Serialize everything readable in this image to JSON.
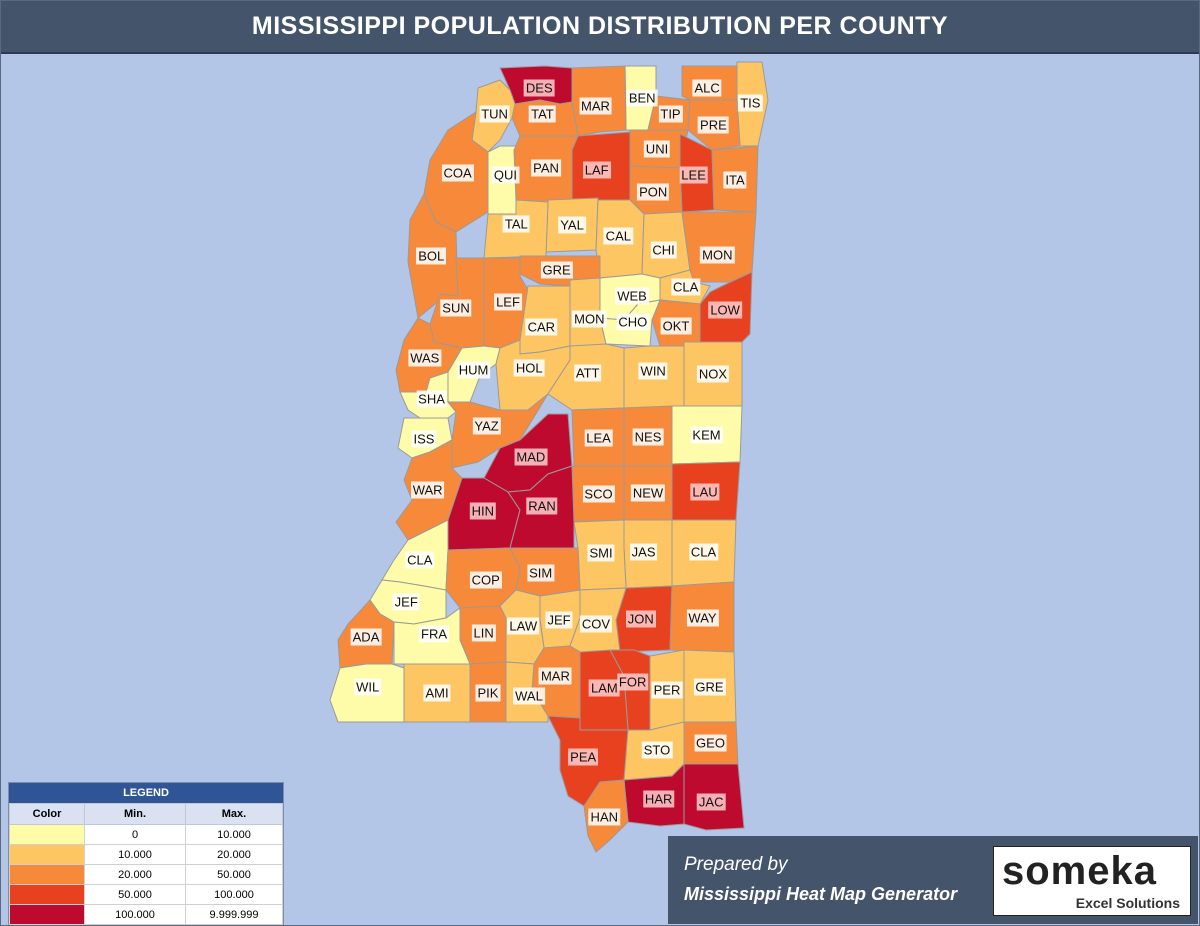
{
  "title": "MISSISSIPPI POPULATION DISTRIBUTION PER COUNTY",
  "colors": {
    "c1": "#fefca8",
    "c2": "#fdc662",
    "c3": "#f78a3a",
    "c4": "#e8411f",
    "c5": "#be0a2e",
    "sea": "#b4c6e7",
    "header": "#44546a"
  },
  "legend": {
    "title": "LEGEND",
    "col_color": "Color",
    "col_min": "Min.",
    "col_max": "Max.",
    "rows": [
      {
        "min": "0",
        "max": "10.000",
        "class": "c1"
      },
      {
        "min": "10.000",
        "max": "20.000",
        "class": "c2"
      },
      {
        "min": "20.000",
        "max": "50.000",
        "class": "c3"
      },
      {
        "min": "50.000",
        "max": "100.000",
        "class": "c4"
      },
      {
        "min": "100.000",
        "max": "9.999.999",
        "class": "c5"
      }
    ]
  },
  "counties": [
    {
      "code": "DES",
      "class": "c5"
    },
    {
      "code": "BEN",
      "class": "c1"
    },
    {
      "code": "ALC",
      "class": "c3"
    },
    {
      "code": "TIS",
      "class": "c2"
    },
    {
      "code": "MAR",
      "class": "c3"
    },
    {
      "code": "TIP",
      "class": "c3"
    },
    {
      "code": "TAT",
      "class": "c3"
    },
    {
      "code": "TUN",
      "class": "c2"
    },
    {
      "code": "PRE",
      "class": "c3"
    },
    {
      "code": "PAN",
      "class": "c3"
    },
    {
      "code": "UNI",
      "class": "c3"
    },
    {
      "code": "LAF",
      "class": "c4"
    },
    {
      "code": "LEE",
      "class": "c4"
    },
    {
      "code": "COA",
      "class": "c3"
    },
    {
      "code": "PON",
      "class": "c3"
    },
    {
      "code": "ITA",
      "class": "c3"
    },
    {
      "code": "QUI",
      "class": "c1"
    },
    {
      "code": "YAL",
      "class": "c2"
    },
    {
      "code": "TAL",
      "class": "c2"
    },
    {
      "code": "CAL",
      "class": "c2"
    },
    {
      "code": "CHI",
      "class": "c2"
    },
    {
      "code": "MON",
      "class": "c3"
    },
    {
      "code": "BOL",
      "class": "c3"
    },
    {
      "code": "GRE",
      "class": "c3"
    },
    {
      "code": "LEF",
      "class": "c3"
    },
    {
      "code": "WEB",
      "class": "c1"
    },
    {
      "code": "CLA",
      "class": "c2"
    },
    {
      "code": "LOW",
      "class": "c4"
    },
    {
      "code": "SUN",
      "class": "c3"
    },
    {
      "code": "CAR",
      "class": "c2"
    },
    {
      "code": "MON",
      "class": "c2"
    },
    {
      "code": "OKT",
      "class": "c3"
    },
    {
      "code": "CHO",
      "class": "c1"
    },
    {
      "code": "WAS",
      "class": "c3"
    },
    {
      "code": "HUM",
      "class": "c1"
    },
    {
      "code": "HOL",
      "class": "c2"
    },
    {
      "code": "ATT",
      "class": "c2"
    },
    {
      "code": "WIN",
      "class": "c2"
    },
    {
      "code": "NOX",
      "class": "c2"
    },
    {
      "code": "SHA",
      "class": "c1"
    },
    {
      "code": "ISS",
      "class": "c1"
    },
    {
      "code": "YAZ",
      "class": "c3"
    },
    {
      "code": "LEA",
      "class": "c3"
    },
    {
      "code": "NES",
      "class": "c3"
    },
    {
      "code": "KEM",
      "class": "c1"
    },
    {
      "code": "MAD",
      "class": "c5"
    },
    {
      "code": "SCO",
      "class": "c3"
    },
    {
      "code": "NEW",
      "class": "c3"
    },
    {
      "code": "LAU",
      "class": "c4"
    },
    {
      "code": "WAR",
      "class": "c3"
    },
    {
      "code": "HIN",
      "class": "c5"
    },
    {
      "code": "RAN",
      "class": "c5"
    },
    {
      "code": "JAS",
      "class": "c2"
    },
    {
      "code": "SMI",
      "class": "c2"
    },
    {
      "code": "CLA",
      "class": "c2"
    },
    {
      "code": "CLA",
      "class": "c1"
    },
    {
      "code": "COP",
      "class": "c3"
    },
    {
      "code": "SIM",
      "class": "c3"
    },
    {
      "code": "JEF",
      "class": "c1"
    },
    {
      "code": "JON",
      "class": "c4"
    },
    {
      "code": "WAY",
      "class": "c3"
    },
    {
      "code": "JEF",
      "class": "c2"
    },
    {
      "code": "COV",
      "class": "c2"
    },
    {
      "code": "ADA",
      "class": "c3"
    },
    {
      "code": "LIN",
      "class": "c3"
    },
    {
      "code": "LAW",
      "class": "c2"
    },
    {
      "code": "FRA",
      "class": "c1"
    },
    {
      "code": "FOR",
      "class": "c4"
    },
    {
      "code": "MAR",
      "class": "c3"
    },
    {
      "code": "GRE",
      "class": "c2"
    },
    {
      "code": "WIL",
      "class": "c1"
    },
    {
      "code": "AMI",
      "class": "c2"
    },
    {
      "code": "PIK",
      "class": "c3"
    },
    {
      "code": "LAM",
      "class": "c4"
    },
    {
      "code": "PER",
      "class": "c2"
    },
    {
      "code": "WAL",
      "class": "c2"
    },
    {
      "code": "GEO",
      "class": "c3"
    },
    {
      "code": "PEA",
      "class": "c4"
    },
    {
      "code": "STO",
      "class": "c2"
    },
    {
      "code": "HAR",
      "class": "c5"
    },
    {
      "code": "JAC",
      "class": "c5"
    },
    {
      "code": "HAN",
      "class": "c3"
    }
  ],
  "credit": {
    "line1": "Prepared by",
    "line2": "Mississippi Heat Map Generator"
  },
  "logo": {
    "brand": "someka",
    "sub": "Excel Solutions"
  }
}
